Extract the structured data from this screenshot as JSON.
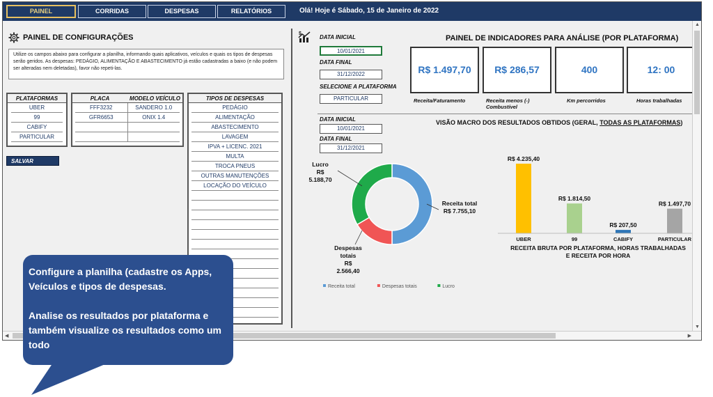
{
  "nav": {
    "tabs": [
      {
        "label": "PAINEL",
        "active": true
      },
      {
        "label": "CORRIDAS",
        "active": false
      },
      {
        "label": "DESPESAS",
        "active": false
      },
      {
        "label": "RELATÓRIOS",
        "active": false
      }
    ],
    "greeting": "Olá! Hoje é Sábado, 15 de Janeiro de 2022"
  },
  "config": {
    "title": "PAINEL DE CONFIGURAÇÕES",
    "description": "Utilize os campos abaixo para configurar a planilha, informando quais aplicativos, veículos e quais os tipos de despesas serão geridos. As despesas: PEDÁGIO, ALIMENTAÇÃO E ABASTECIMENTO já estão cadastradas a baixo (e não podem ser alteradas nem deletadas), favor não repeti-las.",
    "platforms_header": "PLATAFORMAS",
    "platforms": [
      "UBER",
      "99",
      "CABIFY",
      "PARTICULAR"
    ],
    "plate_header": "PLACA",
    "model_header": "MODELO VEÍCULO",
    "vehicles": [
      {
        "plate": "FFF3232",
        "model": "SANDERO 1.0"
      },
      {
        "plate": "GFR6653",
        "model": "ONIX 1.4"
      }
    ],
    "expenses_header": "TIPOS DE DESPESAS",
    "expenses": [
      "PEDÁGIO",
      "ALIMENTAÇÃO",
      "ABASTECIMENTO",
      "LAVAGEM",
      "IPVA + LICENC. 2021",
      "MULTA",
      "TROCA PNEUS",
      "OUTRAS MANUTENÇÕES",
      "LOCAÇÃO DO VEÍCULO"
    ],
    "save_label": "SALVAR"
  },
  "filters": {
    "start_label": "DATA INICIAL",
    "start_value": "10/01/2021",
    "end_label": "DATA FINAL",
    "end_value": "31/12/2022",
    "platform_label": "SELECIONE A PLATAFORMA",
    "platform_value": "PARTICULAR"
  },
  "indicators": {
    "title": "PAINEL DE INDICADORES PARA ANÁLISE (POR PLATAFORMA)",
    "items": [
      {
        "value": "R$ 1.497,70",
        "caption": "Receita/Faturamento"
      },
      {
        "value": "R$ 286,57",
        "caption": "Receita menos (-) Combustível"
      },
      {
        "value": "400",
        "caption": "Km percorridos"
      },
      {
        "value": "12: 00",
        "caption": "Horas trabalhadas"
      }
    ]
  },
  "macro": {
    "title_prefix": "VISÃO MACRO DOS RESULTADOS OBTIDOS (GERAL, ",
    "title_underlined": "TODAS AS PLATAFORMAS",
    "title_suffix": ")",
    "start_label": "DATA INICIAL",
    "start_value": "10/01/2021",
    "end_label": "DATA FINAL",
    "end_value": "31/12/2021"
  },
  "chart_data": [
    {
      "type": "pie",
      "categories": [
        "Receita total",
        "Despesas totais",
        "Lucro"
      ],
      "values": [
        7755.1,
        2566.4,
        5188.7
      ],
      "labels": [
        "Receita total R$ 7.755,10",
        "Despesas totais R$ 2.566,40",
        "Lucro R$ 5.188,70"
      ],
      "colors": [
        "#5b9bd5",
        "#f05555",
        "#1faa4a"
      ],
      "legend": "bottom"
    },
    {
      "type": "bar",
      "categories": [
        "UBER",
        "99",
        "CABIFY",
        "PARTICULAR"
      ],
      "values": [
        4235.4,
        1814.5,
        207.5,
        1497.7
      ],
      "value_labels": [
        "R$ 4.235,40",
        "R$ 1.814,50",
        "R$ 207,50",
        "R$ 1.497,70"
      ],
      "colors": [
        "#ffc000",
        "#a9d18e",
        "#2e75b6",
        "#a5a5a5"
      ],
      "xlabel": "RECEITA BRUTA POR PLATAFORMA, HORAS TRABALHADAS E RECEITA POR HORA"
    }
  ],
  "callout": {
    "line1": "Configure a planilha (cadastre os Apps, Veículos e tipos de despesas.",
    "line2": "Analise os resultados por plataforma e também visualize os resultados como um todo"
  },
  "icons": {
    "settings": "gear-icon",
    "chart": "chart-dollar-icon"
  }
}
